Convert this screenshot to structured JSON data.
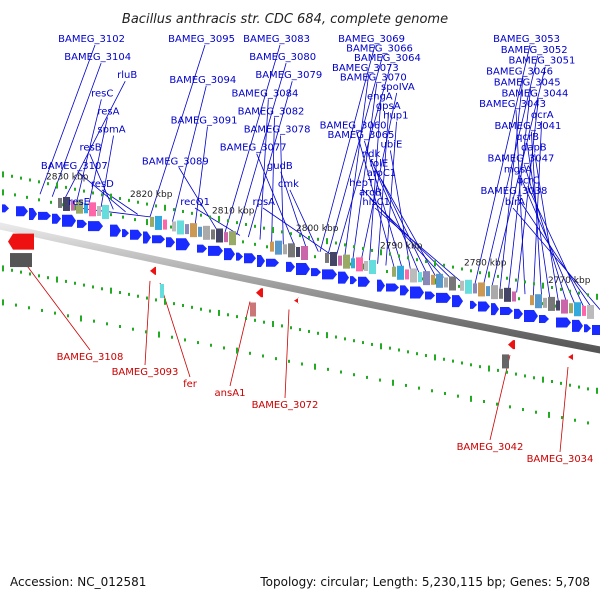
{
  "title": "Bacillus anthracis str. CDC 684, complete genome",
  "footer": {
    "accession": "Accession: NC_012581",
    "summary": "Topology: circular; Length: 5,230,115 bp; Genes: 5,708"
  },
  "colors": {
    "forward_gene": "#1a2bff",
    "reverse_gene": "#ee1111",
    "label_forward": "#0000cc",
    "label_reverse": "#cc0000",
    "backbone": "#888888",
    "tick": "#22aa22"
  },
  "kbp_ticks": [
    "2830 kbp",
    "2820 kbp",
    "2810 kbp",
    "2800 kbp",
    "2790 kbp",
    "2780 kbp",
    "2770 kbp"
  ],
  "forward_labels": [
    "BAMEG_3102",
    "BAMEG_3104",
    "rluB",
    "resC",
    "resA",
    "spmA",
    "resB",
    "BAMEG_3107",
    "resD",
    "resE",
    "BAMEG_3095",
    "BAMEG_3094",
    "BAMEG_3091",
    "BAMEG_3089",
    "recQ1",
    "BAMEG_3083",
    "BAMEG_3080",
    "BAMEG_3079",
    "BAMEG_3084",
    "BAMEG_3082",
    "BAMEG_3078",
    "BAMEG_3077",
    "gudB",
    "cmk",
    "rpsA",
    "BAMEG_3069",
    "BAMEG_3066",
    "BAMEG_3064",
    "BAMEG_3073",
    "BAMEG_3070",
    "spoIVA",
    "engA",
    "gpsA",
    "hup1",
    "BAMEG_3060",
    "BAMEG_3065",
    "ubiE",
    "ndk",
    "folE",
    "aroC1",
    "hepT",
    "aroB",
    "hisC1",
    "BAMEG_3053",
    "BAMEG_3052",
    "BAMEG_3051",
    "BAMEG_3046",
    "BAMEG_3045",
    "BAMEG_3044",
    "BAMEG_3043",
    "qcrA",
    "BAMEG_3041",
    "qcrB",
    "dapB",
    "BAMEG_3047",
    "mgsA",
    "qcrC",
    "BAMEG_3038",
    "birA"
  ],
  "reverse_labels": [
    "BAMEG_3108",
    "BAMEG_3093",
    "fer",
    "ansA1",
    "BAMEG_3072",
    "BAMEG_3042",
    "BAMEG_3034"
  ]
}
